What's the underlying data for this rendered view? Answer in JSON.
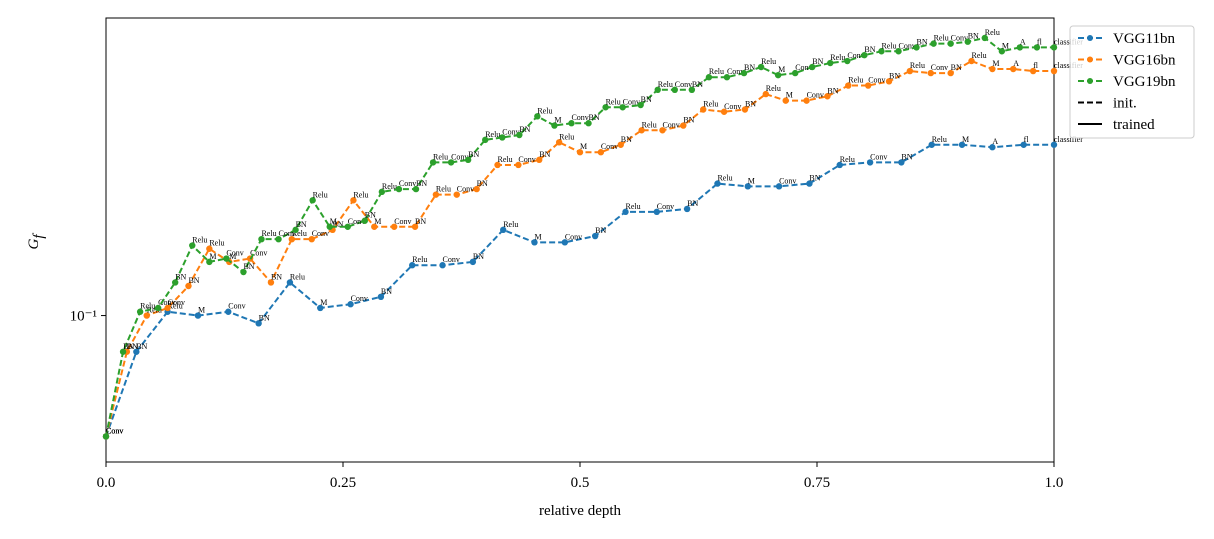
{
  "chart_data": {
    "type": "line",
    "xlabel": "relative depth",
    "ylabel": [
      "G",
      "f"
    ],
    "log_y": true,
    "xlim": [
      0,
      1
    ],
    "xticks": [
      {
        "value": 0,
        "label": "0.0"
      },
      0.25,
      0.5,
      0.75,
      {
        "value": 1,
        "label": "1.0"
      }
    ],
    "ylim": [
      0.0683,
      0.217
    ],
    "yticks": [
      {
        "value": 0.1,
        "label": "10⁻¹"
      }
    ],
    "series": [
      {
        "name": "VGG11bn",
        "color": "#1f77b4",
        "dash": true,
        "x": [
          0,
          0.032,
          0.065,
          0.097,
          0.129,
          0.161,
          0.194,
          0.226,
          0.258,
          0.29,
          0.323,
          0.355,
          0.387,
          0.419,
          0.452,
          0.484,
          0.516,
          0.548,
          0.581,
          0.613,
          0.645,
          0.677,
          0.71,
          0.742,
          0.774,
          0.806,
          0.839,
          0.871,
          0.903,
          0.935,
          0.968,
          1
        ],
        "values": [
          0.073,
          0.091,
          0.101,
          0.1,
          0.101,
          0.098,
          0.109,
          0.102,
          0.103,
          0.105,
          0.114,
          0.114,
          0.115,
          0.125,
          0.121,
          0.121,
          0.123,
          0.131,
          0.131,
          0.132,
          0.141,
          0.14,
          0.14,
          0.141,
          0.148,
          0.149,
          0.149,
          0.156,
          0.156,
          0.155,
          0.156,
          0.156
        ],
        "point_labels": [
          "Conv",
          "BN",
          "Relu",
          "M",
          "Conv",
          "BN",
          "Relu",
          "M",
          "Conv",
          "BN",
          "Relu",
          "Conv",
          "BN",
          "Relu",
          "M",
          "Conv",
          "BN",
          "Relu",
          "Conv",
          "BN",
          "Relu",
          "M",
          "Conv",
          "BN",
          "Relu",
          "Conv",
          "BN",
          "Relu",
          "M",
          "A",
          "fl",
          "classifier"
        ]
      },
      {
        "name": "VGG16bn",
        "color": "#ff7f0e",
        "dash": true,
        "x": [
          0,
          0.022,
          0.043,
          0.065,
          0.087,
          0.109,
          0.13,
          0.152,
          0.174,
          0.196,
          0.217,
          0.239,
          0.261,
          0.283,
          0.304,
          0.326,
          0.348,
          0.37,
          0.391,
          0.413,
          0.435,
          0.457,
          0.478,
          0.5,
          0.522,
          0.543,
          0.565,
          0.587,
          0.609,
          0.63,
          0.652,
          0.674,
          0.696,
          0.717,
          0.739,
          0.761,
          0.783,
          0.804,
          0.826,
          0.848,
          0.87,
          0.891,
          0.913,
          0.935,
          0.957,
          0.978,
          1
        ],
        "values": [
          0.073,
          0.091,
          0.1,
          0.102,
          0.108,
          0.119,
          0.115,
          0.116,
          0.109,
          0.122,
          0.122,
          0.125,
          0.135,
          0.126,
          0.126,
          0.126,
          0.137,
          0.137,
          0.139,
          0.148,
          0.148,
          0.15,
          0.157,
          0.153,
          0.153,
          0.156,
          0.162,
          0.162,
          0.164,
          0.171,
          0.17,
          0.171,
          0.178,
          0.175,
          0.175,
          0.177,
          0.182,
          0.182,
          0.184,
          0.189,
          0.188,
          0.188,
          0.194,
          0.19,
          0.19,
          0.189,
          0.189
        ],
        "point_labels": [
          "Conv",
          "BN",
          "Relu",
          "Conv",
          "BN",
          "Relu",
          "M",
          "Conv",
          "BN",
          "Relu",
          "Conv",
          "BN",
          "Relu",
          "M",
          "Conv",
          "BN",
          "Relu",
          "Conv",
          "BN",
          "Relu",
          "Conv",
          "BN",
          "Relu",
          "M",
          "Conv",
          "BN",
          "Relu",
          "Conv",
          "BN",
          "Relu",
          "Conv",
          "BN",
          "Relu",
          "M",
          "Conv",
          "BN",
          "Relu",
          "Conv",
          "BN",
          "Relu",
          "Conv",
          "BN",
          "Relu",
          "M",
          "A",
          "fl",
          "classifier"
        ]
      },
      {
        "name": "VGG19bn",
        "color": "#2ca02c",
        "dash": true,
        "x": [
          0,
          0.018,
          0.036,
          0.055,
          0.073,
          0.091,
          0.109,
          0.127,
          0.145,
          0.164,
          0.182,
          0.2,
          0.218,
          0.236,
          0.255,
          0.273,
          0.291,
          0.309,
          0.327,
          0.345,
          0.364,
          0.382,
          0.4,
          0.418,
          0.436,
          0.455,
          0.473,
          0.491,
          0.509,
          0.527,
          0.545,
          0.564,
          0.582,
          0.6,
          0.618,
          0.636,
          0.655,
          0.673,
          0.691,
          0.709,
          0.727,
          0.745,
          0.764,
          0.782,
          0.8,
          0.818,
          0.836,
          0.855,
          0.873,
          0.891,
          0.909,
          0.927,
          0.945,
          0.964,
          0.982,
          1
        ],
        "values": [
          0.073,
          0.091,
          0.101,
          0.102,
          0.109,
          0.12,
          0.115,
          0.116,
          0.112,
          0.122,
          0.122,
          0.125,
          0.135,
          0.126,
          0.126,
          0.128,
          0.138,
          0.139,
          0.139,
          0.149,
          0.149,
          0.15,
          0.158,
          0.159,
          0.16,
          0.168,
          0.164,
          0.165,
          0.165,
          0.172,
          0.172,
          0.173,
          0.18,
          0.18,
          0.18,
          0.186,
          0.186,
          0.188,
          0.191,
          0.187,
          0.188,
          0.191,
          0.193,
          0.194,
          0.197,
          0.199,
          0.199,
          0.201,
          0.203,
          0.203,
          0.204,
          0.206,
          0.199,
          0.201,
          0.201,
          0.201
        ],
        "point_labels": [
          "Conv",
          "BN",
          "Relu",
          "Conv",
          "BN",
          "Relu",
          "M",
          "Conv",
          "BN",
          "Relu",
          "Conv",
          "BN",
          "Relu",
          "M",
          "Conv",
          "BN",
          "Relu",
          "Conv",
          "BN",
          "Relu",
          "Conv",
          "BN",
          "Relu",
          "Conv",
          "BN",
          "Relu",
          "M",
          "Conv",
          "BN",
          "Relu",
          "Conv",
          "BN",
          "Relu",
          "Conv",
          "BN",
          "Relu",
          "Conv",
          "BN",
          "Relu",
          "M",
          "Conv",
          "BN",
          "Relu",
          "Conv",
          "BN",
          "Relu",
          "Conv",
          "BN",
          "Relu",
          "Conv",
          "BN",
          "Relu",
          "M",
          "A",
          "fl",
          "classifier"
        ]
      }
    ],
    "line_styles": [
      {
        "name": "init.",
        "dash": true
      },
      {
        "name": "trained",
        "dash": false
      }
    ]
  }
}
